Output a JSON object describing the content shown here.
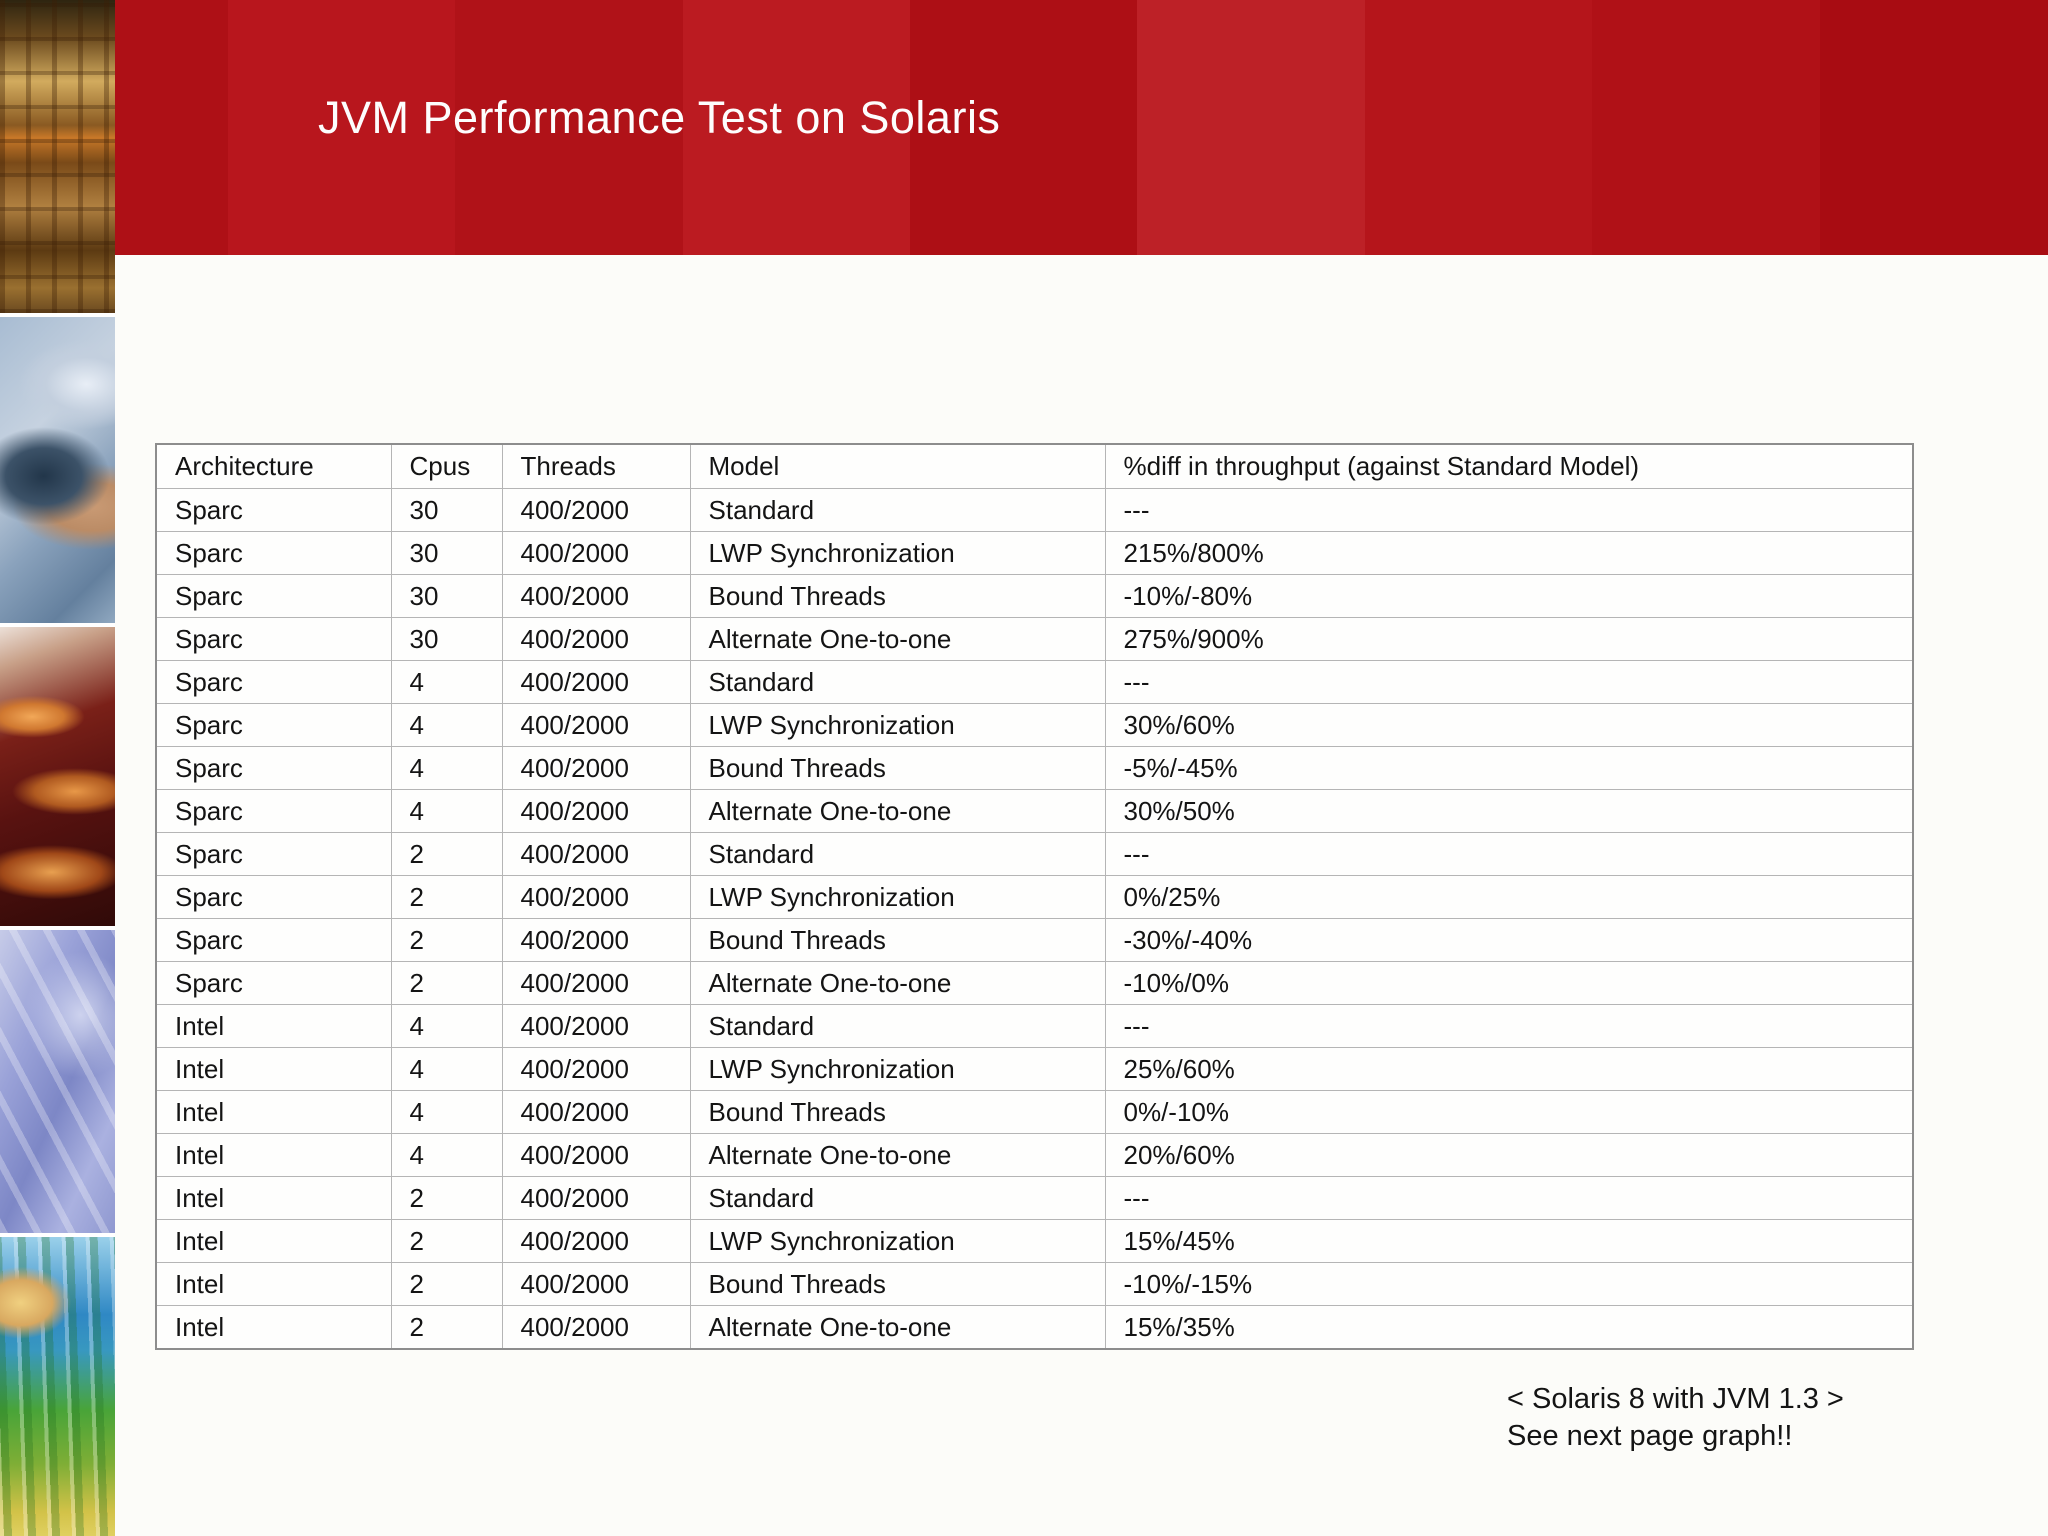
{
  "slide": {
    "title": "JVM Performance Test on Solaris",
    "banner_color": "#b01218",
    "title_color": "#fdfdfd",
    "background_color": "#fcfcf9"
  },
  "photos": {
    "items": [
      {
        "name": "warehouse-boxes"
      },
      {
        "name": "hand-holding-device"
      },
      {
        "name": "eyeglasses-closeup"
      },
      {
        "name": "person-blue-clothing"
      },
      {
        "name": "lab-test-tubes"
      }
    ]
  },
  "table": {
    "columns": [
      "Architecture",
      "Cpus",
      "Threads",
      "Model",
      "%diff in throughput (against Standard Model)"
    ],
    "rows": [
      [
        "Sparc",
        "30",
        "400/2000",
        "Standard",
        "---"
      ],
      [
        "Sparc",
        "30",
        "400/2000",
        "LWP Synchronization",
        "215%/800%"
      ],
      [
        "Sparc",
        "30",
        "400/2000",
        "Bound Threads",
        "-10%/-80%"
      ],
      [
        "Sparc",
        "30",
        "400/2000",
        "Alternate One-to-one",
        "275%/900%"
      ],
      [
        "Sparc",
        "4",
        "400/2000",
        "Standard",
        "---"
      ],
      [
        "Sparc",
        "4",
        "400/2000",
        "LWP Synchronization",
        "30%/60%"
      ],
      [
        "Sparc",
        "4",
        "400/2000",
        "Bound Threads",
        "-5%/-45%"
      ],
      [
        "Sparc",
        "4",
        "400/2000",
        "Alternate One-to-one",
        "30%/50%"
      ],
      [
        "Sparc",
        "2",
        "400/2000",
        "Standard",
        "---"
      ],
      [
        "Sparc",
        "2",
        "400/2000",
        "LWP Synchronization",
        "0%/25%"
      ],
      [
        "Sparc",
        "2",
        "400/2000",
        "Bound Threads",
        "-30%/-40%"
      ],
      [
        "Sparc",
        "2",
        "400/2000",
        "Alternate One-to-one",
        "-10%/0%"
      ],
      [
        "Intel",
        "4",
        "400/2000",
        "Standard",
        "---"
      ],
      [
        "Intel",
        "4",
        "400/2000",
        "LWP Synchronization",
        "25%/60%"
      ],
      [
        "Intel",
        "4",
        "400/2000",
        "Bound Threads",
        "0%/-10%"
      ],
      [
        "Intel",
        "4",
        "400/2000",
        "Alternate One-to-one",
        "20%/60%"
      ],
      [
        "Intel",
        "2",
        "400/2000",
        "Standard",
        "---"
      ],
      [
        "Intel",
        "2",
        "400/2000",
        "LWP Synchronization",
        "15%/45%"
      ],
      [
        "Intel",
        "2",
        "400/2000",
        "Bound Threads",
        "-10%/-15%"
      ],
      [
        "Intel",
        "2",
        "400/2000",
        "Alternate One-to-one",
        "15%/35%"
      ]
    ]
  },
  "footer": {
    "line1": "< Solaris 8 with JVM 1.3 >",
    "line2": "See next page graph!!"
  }
}
